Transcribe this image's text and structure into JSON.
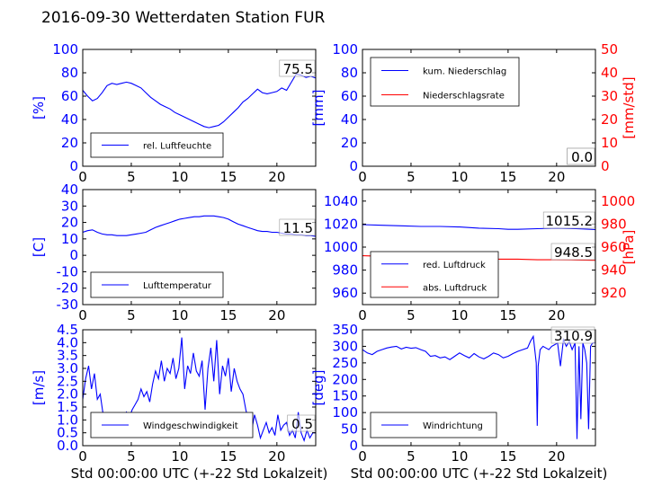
{
  "title": "2016-09-30 Wetterdaten Station FUR",
  "colors": {
    "primary": "#0000ff",
    "secondary": "#ff0000",
    "axis": "#000000"
  },
  "chart_data": [
    {
      "type": "line",
      "xlim": [
        0,
        24
      ],
      "ylim": [
        0,
        100
      ],
      "xticks": [
        0,
        5,
        10,
        15,
        20
      ],
      "yticks": [
        0,
        20,
        40,
        60,
        80,
        100
      ],
      "ylabel": "[%]",
      "legend": "lower-left",
      "latest_value": "75.5",
      "series": [
        {
          "name": "rel. Luftfeuchte",
          "color": "#0000ff",
          "x": [
            0,
            0.5,
            1,
            1.5,
            2,
            2.5,
            3,
            3.5,
            4,
            4.5,
            5,
            5.5,
            6,
            6.5,
            7,
            7.5,
            8,
            8.5,
            9,
            9.5,
            10,
            10.5,
            11,
            11.5,
            12,
            12.5,
            13,
            13.5,
            14,
            14.5,
            15,
            15.5,
            16,
            16.5,
            17,
            17.5,
            18,
            18.5,
            19,
            19.5,
            20,
            20.5,
            21,
            21.5,
            22,
            22.5,
            23,
            23.5,
            24
          ],
          "y": [
            65,
            60,
            56,
            58,
            63,
            69,
            71,
            70,
            71,
            72,
            71,
            69,
            67,
            63,
            59,
            56,
            53,
            51,
            49,
            46,
            44,
            42,
            40,
            38,
            36,
            34,
            33,
            34,
            35,
            38,
            42,
            46,
            50,
            55,
            58,
            62,
            66,
            63,
            62,
            63,
            64,
            67,
            65,
            72,
            79,
            78,
            76,
            77,
            75.5
          ]
        }
      ]
    },
    {
      "type": "line",
      "xlim": [
        0,
        24
      ],
      "ylim": [
        0,
        100
      ],
      "xticks": [
        0,
        5,
        10,
        15,
        20
      ],
      "yticks": [
        0,
        20,
        40,
        60,
        80,
        100
      ],
      "ylabel": "[mm]",
      "y2lim": [
        0,
        50
      ],
      "y2ticks": [
        0,
        10,
        20,
        30,
        40,
        50
      ],
      "y2label": "[mm/std]",
      "legend": "upper-left",
      "latest_value": "0.0",
      "latest_value_2": "0.0",
      "series": [
        {
          "name": "kum. Niederschlag",
          "color": "#0000ff",
          "axis": "left",
          "x": [
            0,
            24
          ],
          "y": [
            0,
            0
          ]
        },
        {
          "name": "Niederschlagsrate",
          "color": "#ff0000",
          "axis": "right",
          "x": [
            0,
            24
          ],
          "y": [
            0,
            0
          ]
        }
      ]
    },
    {
      "type": "line",
      "xlim": [
        0,
        24
      ],
      "ylim": [
        -30,
        40
      ],
      "xticks": [
        0,
        5,
        10,
        15,
        20
      ],
      "yticks": [
        -30,
        -20,
        -10,
        0,
        10,
        20,
        30,
        40
      ],
      "ylabel": "[C]",
      "legend": "lower-left",
      "latest_value": "11.5",
      "series": [
        {
          "name": "Lufttemperatur",
          "color": "#0000ff",
          "x": [
            0,
            0.5,
            1,
            1.5,
            2,
            2.5,
            3,
            3.5,
            4,
            4.5,
            5,
            5.5,
            6,
            6.5,
            7,
            7.5,
            8,
            8.5,
            9,
            9.5,
            10,
            10.5,
            11,
            11.5,
            12,
            12.5,
            13,
            13.5,
            14,
            14.5,
            15,
            15.5,
            16,
            16.5,
            17,
            17.5,
            18,
            18.5,
            19,
            19.5,
            20,
            20.5,
            21,
            21.5,
            22,
            22.5,
            23,
            23.5,
            24
          ],
          "y": [
            14,
            15,
            15.5,
            14,
            13,
            12.5,
            12.5,
            12,
            12,
            12,
            12.5,
            13,
            13.5,
            14,
            15.5,
            17,
            18,
            19,
            20,
            21,
            22,
            22.5,
            23,
            23.5,
            23.5,
            24,
            24,
            24,
            23.5,
            23,
            22,
            20.5,
            19,
            18,
            17,
            16,
            15,
            14.5,
            14.5,
            14,
            14,
            13.5,
            13,
            13,
            12.5,
            12.5,
            12,
            12,
            11.5
          ]
        }
      ]
    },
    {
      "type": "line",
      "xlim": [
        0,
        24
      ],
      "ylim": [
        950,
        1050
      ],
      "xticks": [
        0,
        5,
        10,
        15,
        20
      ],
      "yticks": [
        960,
        980,
        1000,
        1020,
        1040
      ],
      "y2lim": [
        910,
        1010
      ],
      "y2ticks": [
        920,
        940,
        960,
        980,
        1000
      ],
      "y2label": "[hPa]",
      "legend": "lower-left",
      "latest_value": "1015.2",
      "latest_value_2": "948.5",
      "series": [
        {
          "name": "red. Luftdruck",
          "color": "#0000ff",
          "axis": "left",
          "x": [
            0,
            2,
            4,
            6,
            8,
            10,
            12,
            14,
            15,
            16,
            18,
            20,
            22,
            24
          ],
          "y": [
            1019.5,
            1019,
            1018.5,
            1018,
            1018,
            1017.5,
            1016.5,
            1016,
            1015.5,
            1015.5,
            1016,
            1016.5,
            1016,
            1015.2
          ]
        },
        {
          "name": "abs. Luftdruck",
          "color": "#ff0000",
          "axis": "right",
          "x": [
            0,
            2,
            4,
            6,
            8,
            10,
            12,
            14,
            16,
            18,
            20,
            22,
            24
          ],
          "y": [
            952.5,
            952,
            951.5,
            951,
            951,
            950.5,
            950,
            949.5,
            949.5,
            949,
            949,
            948.8,
            948.5
          ]
        }
      ]
    },
    {
      "type": "line",
      "xlim": [
        0,
        24
      ],
      "ylim": [
        0,
        4.5
      ],
      "xticks": [
        0,
        5,
        10,
        15,
        20
      ],
      "yticks": [
        0.0,
        0.5,
        1.0,
        1.5,
        2.0,
        2.5,
        3.0,
        3.5,
        4.0,
        4.5
      ],
      "ylabel": "[m/s]",
      "xlabel": "Std 00:00:00 UTC (+-22 Std Lokalzeit)",
      "legend": "lower-left",
      "latest_value": "0.5",
      "series": [
        {
          "name": "Windgeschwindigkeit",
          "color": "#0000ff",
          "x": [
            0,
            0.3,
            0.6,
            0.9,
            1.2,
            1.5,
            1.8,
            2.1,
            2.4,
            2.7,
            3.0,
            3.3,
            3.6,
            3.9,
            4.2,
            4.5,
            4.8,
            5.1,
            5.4,
            5.7,
            6.0,
            6.3,
            6.6,
            6.9,
            7.2,
            7.5,
            7.8,
            8.1,
            8.4,
            8.7,
            9.0,
            9.3,
            9.6,
            9.9,
            10.2,
            10.5,
            10.8,
            11.1,
            11.4,
            11.7,
            12.0,
            12.3,
            12.6,
            12.9,
            13.2,
            13.5,
            13.8,
            14.1,
            14.4,
            14.7,
            15.0,
            15.3,
            15.6,
            15.9,
            16.2,
            16.5,
            16.8,
            17.1,
            17.4,
            17.7,
            18.0,
            18.3,
            18.6,
            18.9,
            19.2,
            19.5,
            19.8,
            20.1,
            20.4,
            20.7,
            21.0,
            21.3,
            21.6,
            21.9,
            22.2,
            22.5,
            22.8,
            23.1,
            23.4,
            23.7,
            24.0
          ],
          "y": [
            1.8,
            2.6,
            3.1,
            2.2,
            2.8,
            1.8,
            2.0,
            1.2,
            1.0,
            0.8,
            0.9,
            0.8,
            1.2,
            0.9,
            1.0,
            1.3,
            1.1,
            1.4,
            1.6,
            1.8,
            2.2,
            1.9,
            2.1,
            1.7,
            2.4,
            2.9,
            2.6,
            3.3,
            2.5,
            3.0,
            2.8,
            3.4,
            2.6,
            3.0,
            4.2,
            2.2,
            3.1,
            2.8,
            3.6,
            2.9,
            2.7,
            3.3,
            1.4,
            3.0,
            3.8,
            2.5,
            4.1,
            2.0,
            3.1,
            2.7,
            3.4,
            2.1,
            3.0,
            2.5,
            2.2,
            2.0,
            1.4,
            0.9,
            0.6,
            1.2,
            0.8,
            0.3,
            0.6,
            0.9,
            0.5,
            0.7,
            0.4,
            1.2,
            0.6,
            0.8,
            0.9,
            0.4,
            0.6,
            0.3,
            1.3,
            0.5,
            0.2,
            0.6,
            0.3,
            0.5,
            0.5
          ]
        }
      ]
    },
    {
      "type": "line",
      "xlim": [
        0,
        24
      ],
      "ylim": [
        0,
        350
      ],
      "xticks": [
        0,
        5,
        10,
        15,
        20
      ],
      "yticks": [
        0,
        50,
        100,
        150,
        200,
        250,
        300,
        350
      ],
      "ylabel": "[deg]",
      "xlabel": "Std 00:00:00 UTC (+-22 Std Lokalzeit)",
      "legend": "lower-left",
      "latest_value": "310.9",
      "series": [
        {
          "name": "Windrichtung",
          "color": "#0000ff",
          "x": [
            0,
            0.5,
            1,
            1.5,
            2,
            2.5,
            3,
            3.5,
            4,
            4.5,
            5,
            5.5,
            6,
            6.5,
            7,
            7.5,
            8,
            8.5,
            9,
            9.5,
            10,
            10.5,
            11,
            11.5,
            12,
            12.5,
            13,
            13.5,
            14,
            14.5,
            15,
            15.5,
            16,
            16.5,
            17,
            17.3,
            17.6,
            17.9,
            18.0,
            18.1,
            18.3,
            18.6,
            18.9,
            19.2,
            19.5,
            19.8,
            20.1,
            20.4,
            20.7,
            21.0,
            21.3,
            21.6,
            21.9,
            22.1,
            22.3,
            22.5,
            22.7,
            22.9,
            23.1,
            23.3,
            23.5,
            23.7,
            24.0
          ],
          "y": [
            290,
            280,
            275,
            285,
            290,
            295,
            298,
            300,
            292,
            297,
            294,
            296,
            290,
            285,
            270,
            272,
            265,
            268,
            260,
            270,
            280,
            272,
            265,
            278,
            268,
            262,
            270,
            280,
            275,
            265,
            270,
            278,
            285,
            290,
            295,
            315,
            330,
            250,
            60,
            240,
            290,
            300,
            295,
            290,
            300,
            305,
            310,
            240,
            320,
            300,
            315,
            290,
            310,
            20,
            300,
            80,
            310,
            290,
            250,
            50,
            300,
            310,
            310.9
          ]
        }
      ]
    }
  ]
}
